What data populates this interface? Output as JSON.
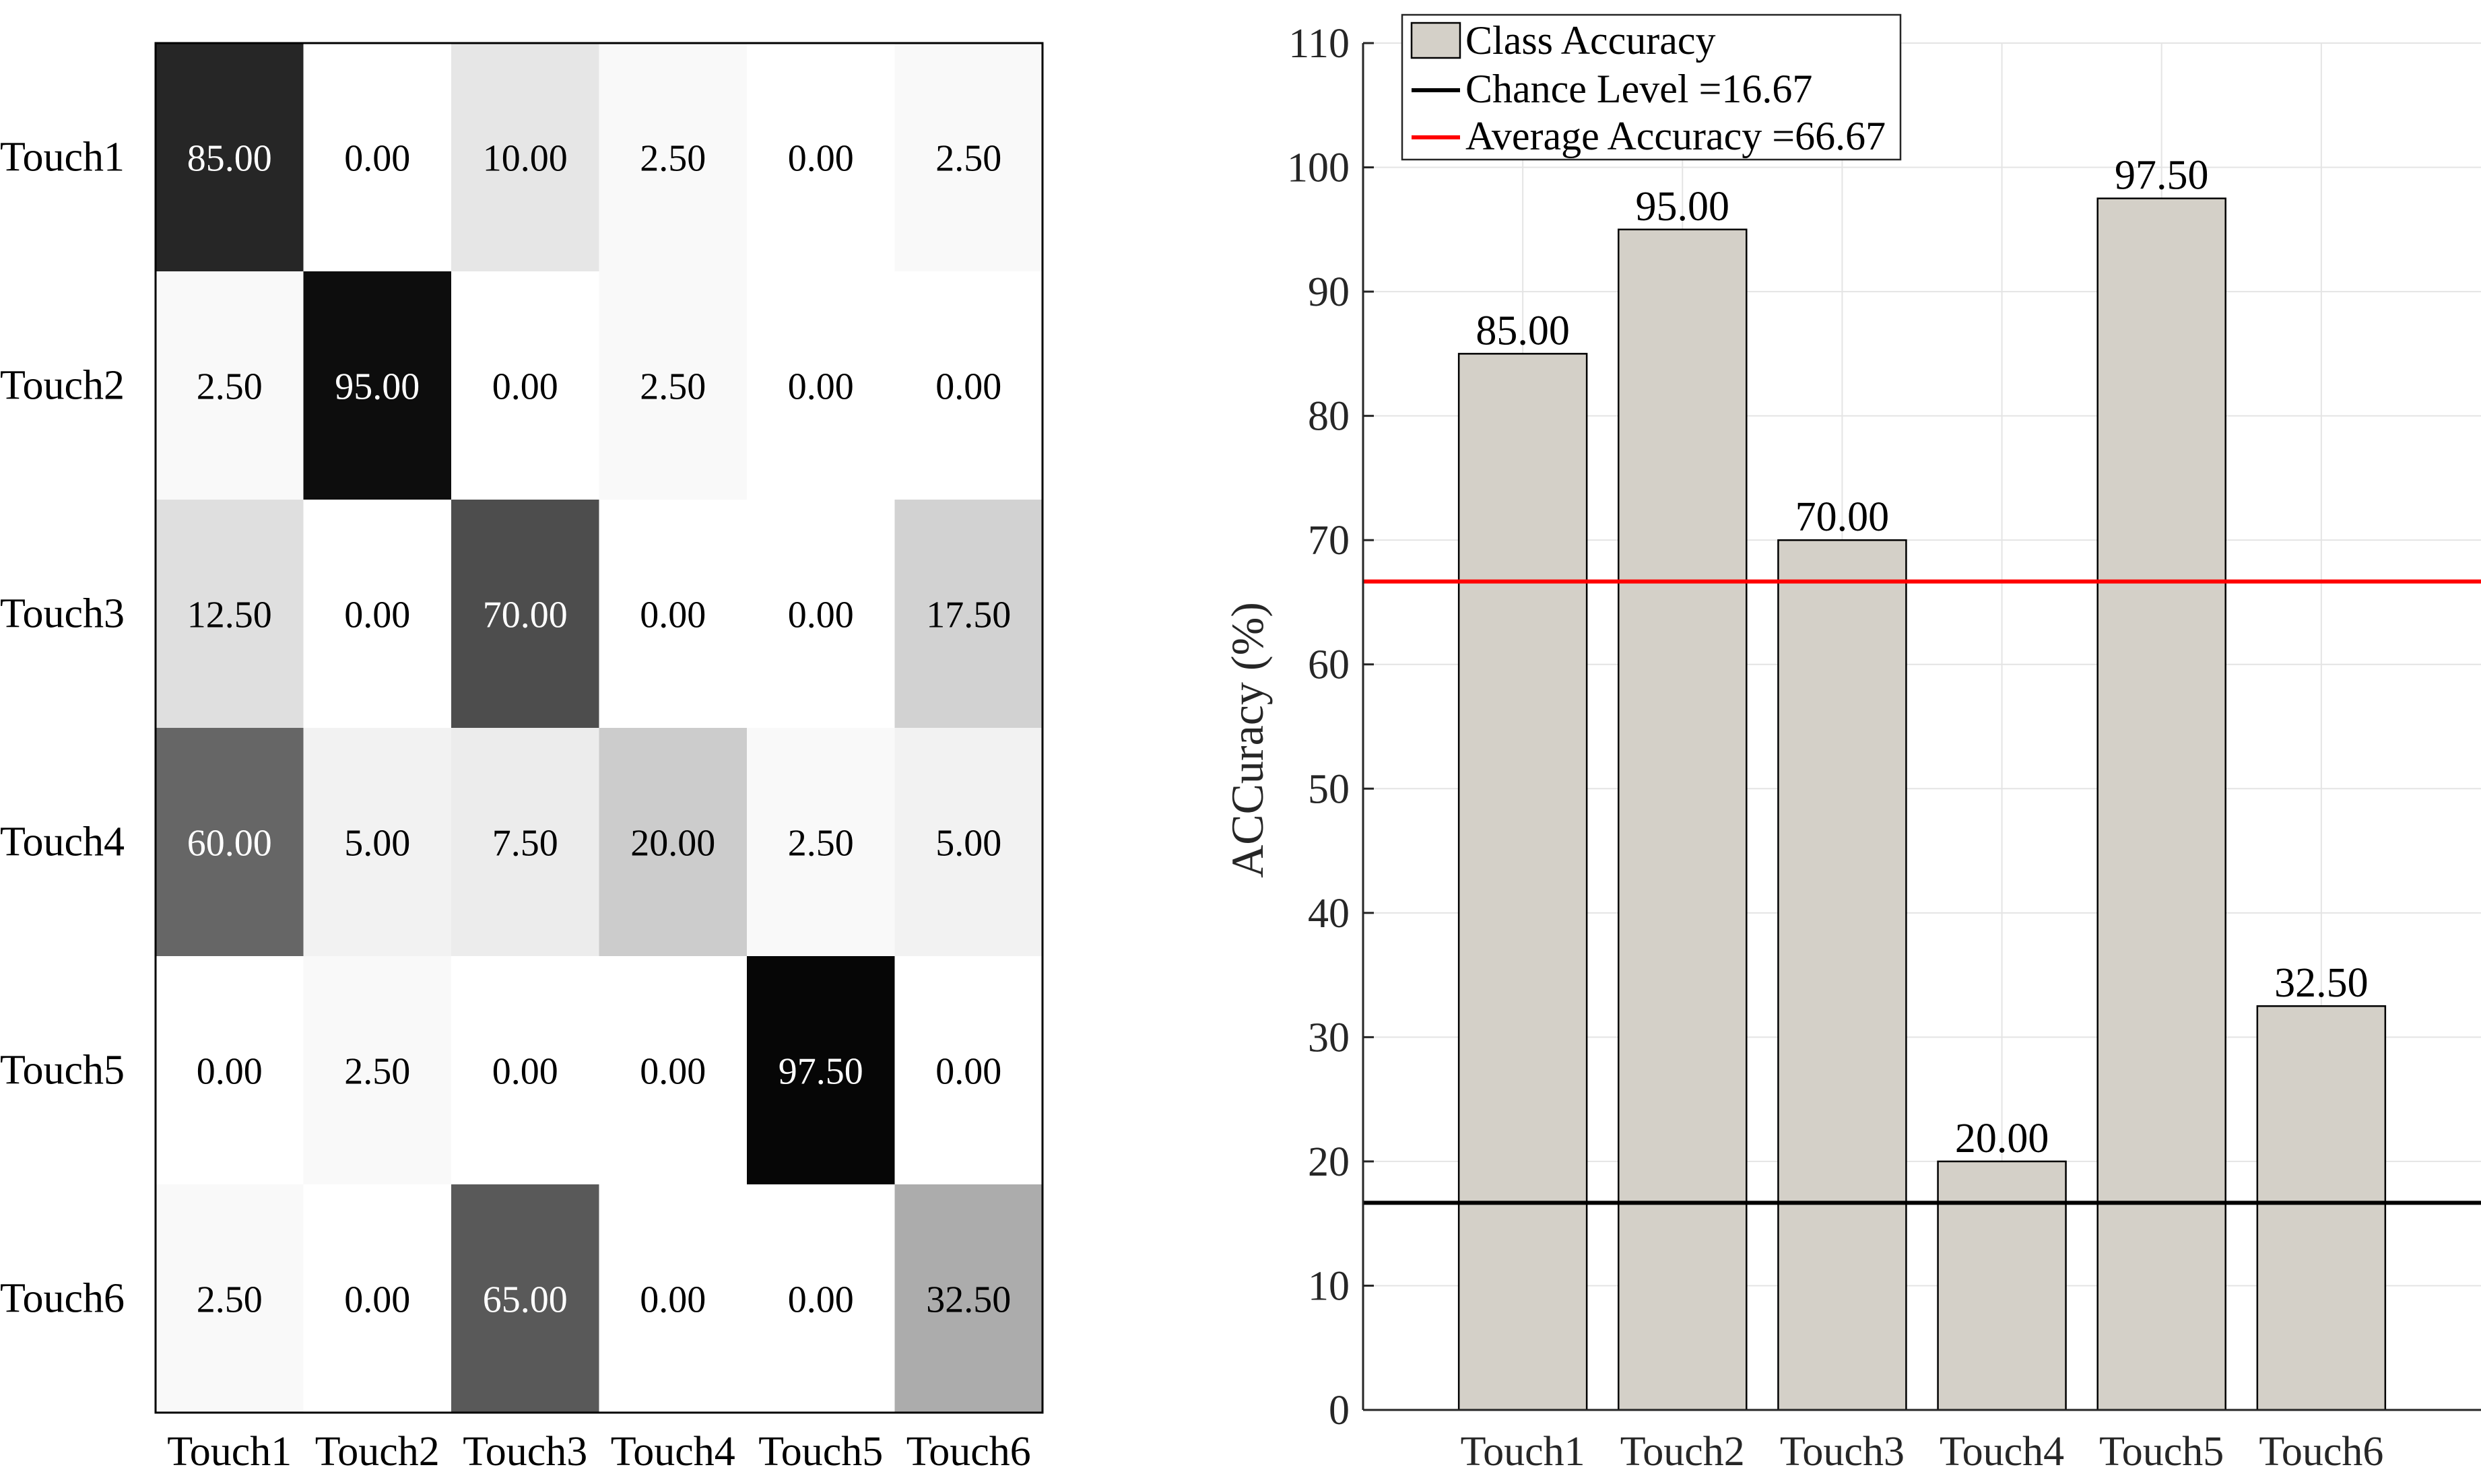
{
  "chart_data": [
    {
      "type": "heatmap",
      "colormap": "gray-reversed",
      "row_labels": [
        "Touch1",
        "Touch2",
        "Touch3",
        "Touch4",
        "Touch5",
        "Touch6"
      ],
      "col_labels": [
        "Touch1",
        "Touch2",
        "Touch3",
        "Touch4",
        "Touch5",
        "Touch6"
      ],
      "values": [
        [
          85.0,
          0.0,
          10.0,
          2.5,
          0.0,
          2.5
        ],
        [
          2.5,
          95.0,
          0.0,
          2.5,
          0.0,
          0.0
        ],
        [
          12.5,
          0.0,
          70.0,
          0.0,
          0.0,
          17.5
        ],
        [
          60.0,
          5.0,
          7.5,
          20.0,
          2.5,
          5.0
        ],
        [
          0.0,
          2.5,
          0.0,
          0.0,
          97.5,
          0.0
        ],
        [
          2.5,
          0.0,
          65.0,
          0.0,
          0.0,
          32.5
        ]
      ],
      "cell_labels": [
        [
          "85.00",
          "0.00",
          "10.00",
          "2.50",
          "0.00",
          "2.50"
        ],
        [
          "2.50",
          "95.00",
          "0.00",
          "2.50",
          "0.00",
          "0.00"
        ],
        [
          "12.50",
          "0.00",
          "70.00",
          "0.00",
          "0.00",
          "17.50"
        ],
        [
          "60.00",
          "5.00",
          "7.50",
          "20.00",
          "2.50",
          "5.00"
        ],
        [
          "0.00",
          "2.50",
          "0.00",
          "0.00",
          "97.50",
          "0.00"
        ],
        [
          "2.50",
          "0.00",
          "65.00",
          "0.00",
          "0.00",
          "32.50"
        ]
      ],
      "value_range": [
        0,
        100
      ]
    },
    {
      "type": "bar",
      "categories": [
        "Touch1",
        "Touch2",
        "Touch3",
        "Touch4",
        "Touch5",
        "Touch6"
      ],
      "values": [
        85.0,
        95.0,
        70.0,
        20.0,
        97.5,
        32.5
      ],
      "data_labels": [
        "85.00",
        "95.00",
        "70.00",
        "20.00",
        "97.50",
        "32.50"
      ],
      "ylabel": "ACCuracy (%)",
      "xlabel": "",
      "ylim": [
        0,
        110
      ],
      "yticks": [
        0,
        10,
        20,
        30,
        40,
        50,
        60,
        70,
        80,
        90,
        100,
        110
      ],
      "ytick_labels": [
        "0",
        "10",
        "20",
        "30",
        "40",
        "50",
        "60",
        "70",
        "80",
        "90",
        "100",
        "110"
      ],
      "grid": true,
      "bar_color": "#d4d0c8",
      "reference_lines": [
        {
          "name": "Chance Level",
          "value": 16.67,
          "color": "#000000"
        },
        {
          "name": "Average Accuracy",
          "value": 66.67,
          "color": "#ff0000"
        }
      ],
      "legend": {
        "position": "top-left",
        "entries": [
          "Class Accuracy",
          "Chance Level =16.67",
          "Average Accuracy =66.67"
        ]
      }
    }
  ]
}
